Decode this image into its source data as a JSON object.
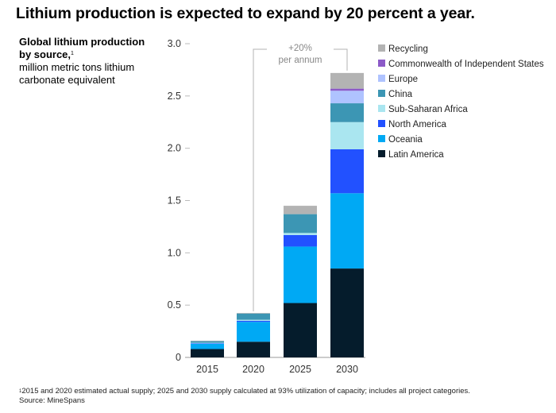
{
  "title": "Lithium production is expected to expand by 20 percent a year.",
  "subtitle_bold": "Global lithium production by source,",
  "subtitle_note_marker": "1",
  "subtitle_unit": "million metric tons lithium carbonate equivalent",
  "growth_annotation": {
    "value": "+20%",
    "text": "per annum"
  },
  "footnote": {
    "marker": "1",
    "text": "2015 and 2020 estimated actual supply; 2025 and 2030 supply calculated at 93% utilization of capacity; includes all project categories.",
    "source": "Source: MineSpans"
  },
  "chart_data": {
    "type": "bar",
    "stacked": true,
    "categories": [
      "2015",
      "2020",
      "2025",
      "2030"
    ],
    "ylim": [
      0,
      3.0
    ],
    "yticks": [
      0,
      0.5,
      1.0,
      1.5,
      2.0,
      2.5,
      3.0
    ],
    "ytick_labels": [
      "0",
      "0.5",
      "1.0",
      "1.5",
      "2.0",
      "2.5",
      "3.0"
    ],
    "legend_position": "right",
    "series": [
      {
        "name": "Latin America",
        "color": "#051c2c",
        "values": [
          0.08,
          0.15,
          0.52,
          0.85
        ]
      },
      {
        "name": "Oceania",
        "color": "#00a9f4",
        "values": [
          0.05,
          0.19,
          0.54,
          0.72
        ]
      },
      {
        "name": "North America",
        "color": "#2251ff",
        "values": [
          0.005,
          0.01,
          0.11,
          0.42
        ]
      },
      {
        "name": "Sub-Saharan Africa",
        "color": "#aae6f0",
        "values": [
          0.005,
          0.01,
          0.02,
          0.26
        ]
      },
      {
        "name": "China",
        "color": "#3c96b4",
        "values": [
          0.015,
          0.06,
          0.18,
          0.18
        ]
      },
      {
        "name": "Europe",
        "color": "#afc3ff",
        "values": [
          0,
          0,
          0,
          0.12
        ]
      },
      {
        "name": "Commonwealth of Independent States",
        "color": "#8c5ac8",
        "values": [
          0,
          0,
          0,
          0.02
        ]
      },
      {
        "name": "Recycling",
        "color": "#b3b3b3",
        "values": [
          0.005,
          0.005,
          0.08,
          0.15
        ]
      }
    ]
  }
}
